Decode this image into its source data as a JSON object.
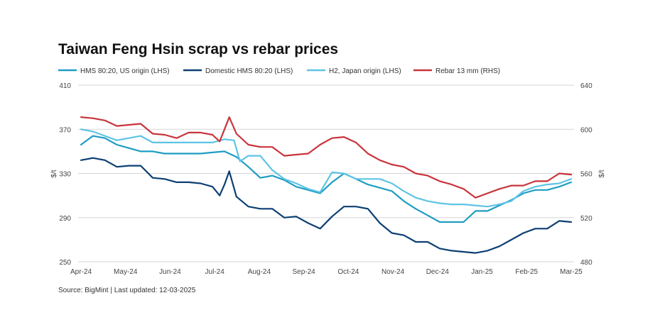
{
  "chart_data": {
    "type": "line",
    "title": "Taiwan Feng Hsin scrap vs rebar prices",
    "xlabel": "",
    "ylabel": "$/t",
    "ylabel_right": "$/t",
    "ylim": [
      250,
      410
    ],
    "ylim_right": [
      480,
      640
    ],
    "yticks": [
      "410",
      "370",
      "330",
      "290",
      "250"
    ],
    "yticks_right": [
      "640",
      "600",
      "560",
      "520",
      "480"
    ],
    "grid": true,
    "legend_position": "top",
    "categories": [
      "Apr-24",
      "May-24",
      "Jun-24",
      "Jul-24",
      "Aug-24",
      "Sep-24",
      "Oct-24",
      "Nov-24",
      "Dec-24",
      "Jan-25",
      "Feb-25",
      "Mar-25"
    ],
    "x_points": [
      0,
      0.5,
      1,
      1.5,
      2,
      2.5,
      3,
      3.5,
      4,
      4.5,
      5,
      5.5,
      6,
      6.5,
      7,
      7.5,
      8,
      8.5,
      9,
      9.5,
      10,
      10.5,
      11,
      11.5,
      12,
      12.5,
      13,
      13.5,
      14,
      14.5,
      15,
      15.5,
      16,
      16.5,
      17,
      17.5,
      18,
      18.5,
      19,
      19.5,
      20,
      20.5,
      21,
      21.5,
      22,
      22.5,
      23,
      23.5,
      24,
      24.5,
      25,
      25.5,
      26,
      26.5,
      27,
      27.5,
      28,
      28.5,
      29,
      29.5,
      30,
      30.5,
      31,
      31.5,
      32,
      32.5,
      33,
      33.5,
      34,
      34.5,
      35,
      35.5,
      36,
      36.5,
      37,
      37.5,
      38,
      38.5,
      39,
      39.5,
      40,
      40.5,
      41,
      41.5,
      42,
      42.5,
      43,
      43.5,
      44,
      44.5,
      45,
      45.5,
      46,
      46.5,
      47,
      47.5,
      48,
      48.5,
      49,
      49.5
    ],
    "series": [
      {
        "name": "HMS 80:20, US origin (LHS)",
        "axis": "left",
        "color": "#1f9dc2",
        "points": [
          [
            0,
            356
          ],
          [
            1,
            364
          ],
          [
            2,
            362
          ],
          [
            3,
            356
          ],
          [
            4,
            353
          ],
          [
            5,
            350
          ],
          [
            6,
            350
          ],
          [
            7,
            348
          ],
          [
            8,
            348
          ],
          [
            9,
            348
          ],
          [
            10,
            348
          ],
          [
            11,
            349
          ],
          [
            12,
            350
          ],
          [
            13,
            345
          ],
          [
            14,
            336
          ],
          [
            15,
            326
          ],
          [
            16,
            328
          ],
          [
            17,
            324
          ],
          [
            18,
            318
          ],
          [
            19,
            315
          ],
          [
            20,
            312
          ],
          [
            21,
            322
          ],
          [
            22,
            330
          ],
          [
            23,
            325
          ],
          [
            24,
            320
          ],
          [
            25,
            317
          ],
          [
            26,
            314
          ],
          [
            27,
            305
          ],
          [
            28,
            298
          ],
          [
            29,
            292
          ],
          [
            30,
            286
          ],
          [
            31,
            286
          ],
          [
            32,
            286
          ],
          [
            33,
            296
          ],
          [
            34,
            296
          ],
          [
            35,
            301
          ],
          [
            36,
            306
          ],
          [
            37,
            312
          ],
          [
            38,
            315
          ],
          [
            39,
            315
          ],
          [
            40,
            318
          ],
          [
            41,
            322
          ]
        ]
      },
      {
        "name": "Domestic HMS 80:20 (LHS)",
        "axis": "left",
        "color": "#0d3f73",
        "points": [
          [
            0,
            342
          ],
          [
            1,
            344
          ],
          [
            2,
            342
          ],
          [
            3,
            336
          ],
          [
            4,
            337
          ],
          [
            5,
            337
          ],
          [
            6,
            326
          ],
          [
            7,
            325
          ],
          [
            8,
            322
          ],
          [
            9,
            322
          ],
          [
            10,
            321
          ],
          [
            11,
            318
          ],
          [
            11.6,
            310
          ],
          [
            12,
            320
          ],
          [
            12.4,
            332
          ],
          [
            13,
            309
          ],
          [
            14,
            300
          ],
          [
            15,
            298
          ],
          [
            16,
            298
          ],
          [
            17,
            290
          ],
          [
            18,
            291
          ],
          [
            19,
            285
          ],
          [
            20,
            280
          ],
          [
            21,
            291
          ],
          [
            22,
            300
          ],
          [
            23,
            300
          ],
          [
            24,
            298
          ],
          [
            25,
            285
          ],
          [
            26,
            276
          ],
          [
            27,
            274
          ],
          [
            28,
            268
          ],
          [
            29,
            268
          ],
          [
            30,
            262
          ],
          [
            31,
            260
          ],
          [
            32,
            259
          ],
          [
            33,
            258
          ],
          [
            34,
            260
          ],
          [
            35,
            264
          ],
          [
            36,
            270
          ],
          [
            37,
            276
          ],
          [
            38,
            280
          ],
          [
            39,
            280
          ],
          [
            40,
            287
          ],
          [
            41,
            286
          ]
        ]
      },
      {
        "name": "H2, Japan origin (LHS)",
        "axis": "left",
        "color": "#5ec3e6",
        "points": [
          [
            0,
            370
          ],
          [
            1,
            368
          ],
          [
            2,
            364
          ],
          [
            3,
            360
          ],
          [
            4,
            362
          ],
          [
            5,
            364
          ],
          [
            6,
            358
          ],
          [
            7,
            358
          ],
          [
            8,
            358
          ],
          [
            9,
            358
          ],
          [
            10,
            358
          ],
          [
            11,
            358
          ],
          [
            12,
            361
          ],
          [
            12.8,
            360
          ],
          [
            13.3,
            341
          ],
          [
            14,
            346
          ],
          [
            15,
            346
          ],
          [
            16,
            333
          ],
          [
            17,
            325
          ],
          [
            18,
            321
          ],
          [
            19,
            316
          ],
          [
            20,
            313
          ],
          [
            21,
            331
          ],
          [
            22,
            330
          ],
          [
            23,
            325
          ],
          [
            24,
            325
          ],
          [
            25,
            325
          ],
          [
            26,
            321
          ],
          [
            27,
            314
          ],
          [
            28,
            308
          ],
          [
            29,
            305
          ],
          [
            30,
            303
          ],
          [
            31,
            302
          ],
          [
            32,
            302
          ],
          [
            33,
            301
          ],
          [
            34,
            300
          ],
          [
            35,
            302
          ],
          [
            36,
            305
          ],
          [
            37,
            314
          ],
          [
            38,
            318
          ],
          [
            39,
            320
          ],
          [
            40,
            321
          ],
          [
            41,
            325
          ]
        ]
      },
      {
        "name": "Rebar 13 mm (RHS)",
        "axis": "right",
        "color": "#c9343c",
        "points": [
          [
            0,
            611
          ],
          [
            1,
            610
          ],
          [
            2,
            608
          ],
          [
            3,
            603
          ],
          [
            4,
            604
          ],
          [
            5,
            605
          ],
          [
            6,
            596
          ],
          [
            7,
            595
          ],
          [
            8,
            592
          ],
          [
            9,
            597
          ],
          [
            10,
            597
          ],
          [
            11,
            595
          ],
          [
            11.6,
            589
          ],
          [
            12,
            600
          ],
          [
            12.4,
            611
          ],
          [
            13,
            596
          ],
          [
            14,
            586
          ],
          [
            15,
            584
          ],
          [
            16,
            584
          ],
          [
            17,
            576
          ],
          [
            18,
            577
          ],
          [
            19,
            578
          ],
          [
            20,
            586
          ],
          [
            21,
            592
          ],
          [
            22,
            593
          ],
          [
            23,
            588
          ],
          [
            24,
            578
          ],
          [
            25,
            572
          ],
          [
            26,
            568
          ],
          [
            27,
            566
          ],
          [
            28,
            560
          ],
          [
            29,
            558
          ],
          [
            30,
            553
          ],
          [
            31,
            550
          ],
          [
            32,
            546
          ],
          [
            33,
            538
          ],
          [
            34,
            542
          ],
          [
            35,
            546
          ],
          [
            36,
            549
          ],
          [
            37,
            549
          ],
          [
            38,
            553
          ],
          [
            39,
            553
          ],
          [
            40,
            560
          ],
          [
            41,
            559
          ]
        ]
      }
    ],
    "source": "Source: BigMint | Last updated: 12-03-2025"
  },
  "colors": {
    "grid": "#d6d6d6",
    "title": "#111111"
  }
}
